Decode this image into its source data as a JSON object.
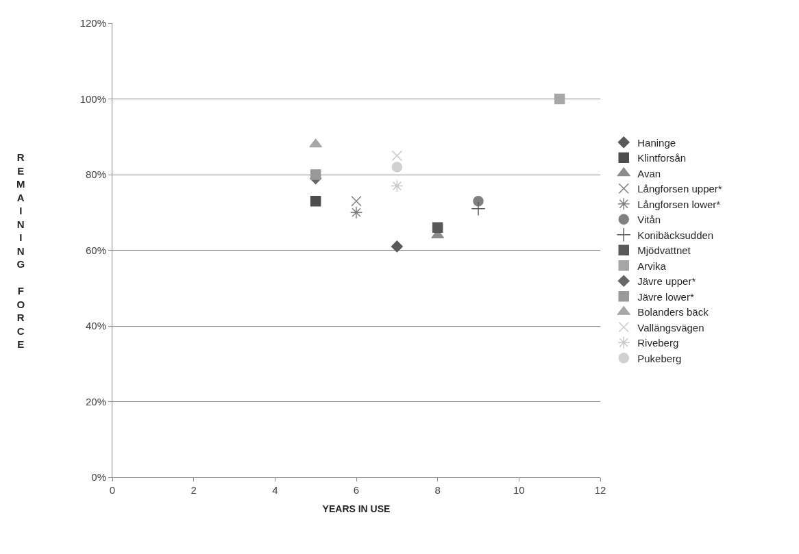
{
  "chart_data": {
    "type": "scatter",
    "xlabel": "YEARS IN USE",
    "ylabel": "REMAINING FORCE",
    "xlim": [
      0,
      12
    ],
    "xticks": [
      0,
      2,
      4,
      6,
      8,
      10,
      12
    ],
    "ylim": [
      0,
      120
    ],
    "yticks": [
      {
        "value": 0,
        "label": "0%"
      },
      {
        "value": 20,
        "label": "20%"
      },
      {
        "value": 40,
        "label": "40%"
      },
      {
        "value": 60,
        "label": "60%"
      },
      {
        "value": 80,
        "label": "80%"
      },
      {
        "value": 100,
        "label": "100%"
      },
      {
        "value": 120,
        "label": "120%"
      }
    ],
    "grid": "y",
    "legend": "right",
    "series": [
      {
        "name": "Haninge",
        "color": "#595959",
        "marker": "diamond",
        "x": [
          7
        ],
        "values": [
          61
        ]
      },
      {
        "name": "Klintforsån",
        "color": "#4d4d4d",
        "marker": "square",
        "x": [
          5
        ],
        "values": [
          73
        ]
      },
      {
        "name": "Avan",
        "color": "#8c8c8c",
        "marker": "triangle",
        "x": [
          8
        ],
        "values": [
          64
        ]
      },
      {
        "name": "Långforsen upper*",
        "color": "#7f7f7f",
        "marker": "x",
        "x": [
          6
        ],
        "values": [
          73
        ]
      },
      {
        "name": "Långforsen lower*",
        "color": "#7f7f7f",
        "marker": "cross",
        "x": [
          6
        ],
        "values": [
          70
        ]
      },
      {
        "name": "Vitån",
        "color": "#808080",
        "marker": "circle",
        "x": [
          9
        ],
        "values": [
          73
        ]
      },
      {
        "name": "Konibäcksudden",
        "color": "#595959",
        "marker": "plus",
        "x": [
          9
        ],
        "values": [
          71
        ]
      },
      {
        "name": "Mjödvattnet",
        "color": "#595959",
        "marker": "square",
        "x": [
          8
        ],
        "values": [
          66
        ]
      },
      {
        "name": "Arvika",
        "color": "#a6a6a6",
        "marker": "square",
        "x": [
          11
        ],
        "values": [
          100
        ]
      },
      {
        "name": "Jävre upper*",
        "color": "#666666",
        "marker": "diamond",
        "x": [
          5
        ],
        "values": [
          79
        ]
      },
      {
        "name": "Jävre lower*",
        "color": "#999999",
        "marker": "square",
        "x": [
          5
        ],
        "values": [
          80
        ]
      },
      {
        "name": "Bolanders bäck",
        "color": "#a6a6a6",
        "marker": "triangle",
        "x": [
          5
        ],
        "values": [
          88
        ]
      },
      {
        "name": "Vallängsvägen",
        "color": "#cccccc",
        "marker": "x",
        "x": [
          7
        ],
        "values": [
          85
        ]
      },
      {
        "name": "Riveberg",
        "color": "#c8c8c8",
        "marker": "cross",
        "x": [
          7
        ],
        "values": [
          77
        ]
      },
      {
        "name": "Pukeberg",
        "color": "#d0d0d0",
        "marker": "circle",
        "x": [
          7
        ],
        "values": [
          82
        ]
      }
    ]
  }
}
